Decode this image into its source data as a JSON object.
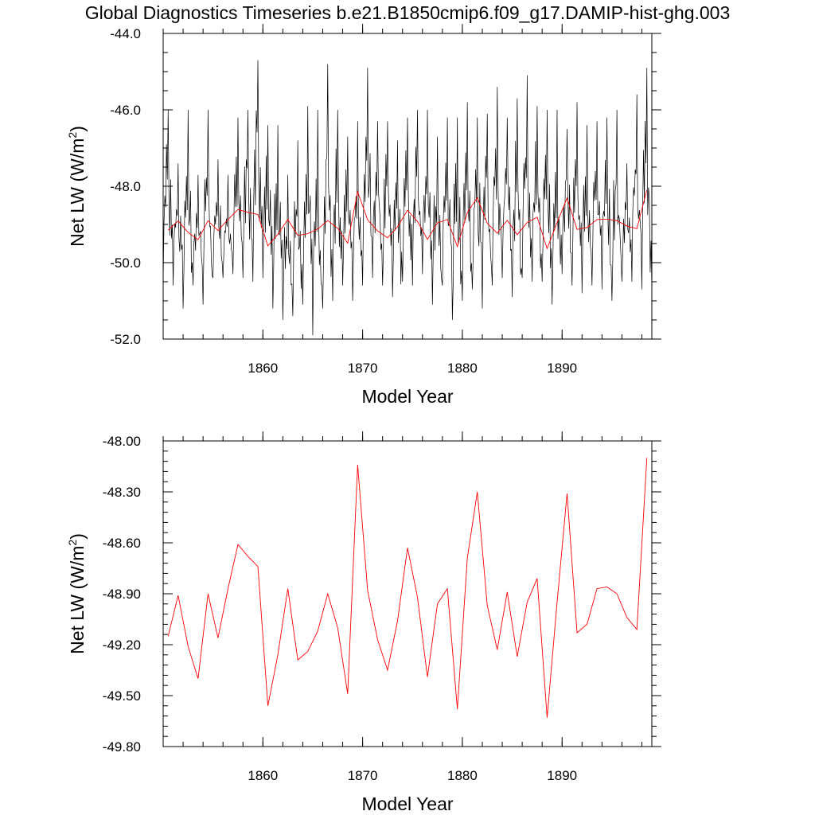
{
  "page_title": "Global Diagnostics Timeseries b.e21.B1850cmip6.f09_g17.DAMIP-hist-ghg.003",
  "chart_data": [
    {
      "type": "line",
      "xlabel": "Model Year",
      "ylabel": "Net LW (W/m",
      "ylabel_sup": "2",
      "ylabel_close": ")",
      "xlim": [
        1850,
        1899
      ],
      "ylim": [
        -52.0,
        -44.0
      ],
      "xticks": [
        1860,
        1870,
        1880,
        1890
      ],
      "xtick_labels": [
        "1860",
        "1870",
        "1880",
        "1890"
      ],
      "yticks": [
        -52.0,
        -50.0,
        -48.0,
        -46.0,
        -44.0
      ],
      "ytick_labels": [
        "-52.0",
        "-50.0",
        "-48.0",
        "-46.0",
        "-44.0"
      ],
      "x_minor_step": 2,
      "y_minor_step": 0.5,
      "grid": false,
      "monthly_peaks": [
        -46.0,
        -47.4,
        -46.0,
        -47.7,
        -46.0,
        -47.3,
        -47.7,
        -46.2,
        -46.0,
        -44.7,
        -46.4,
        -46.4,
        -47.7,
        -46.8,
        -45.9,
        -46.0,
        -44.8,
        -46.0,
        -46.7,
        -46.3,
        -44.9,
        -46.3,
        -46.3,
        -46.8,
        -46.2,
        -46.0,
        -46.0,
        -46.7,
        -46.2,
        -46.2,
        -45.8,
        -46.2,
        -46.1,
        -45.4,
        -46.2,
        -45.7,
        -45.1,
        -45.9,
        -46.0,
        -46.0,
        -46.5,
        -45.8,
        -46.4,
        -46.3,
        -46.2,
        -46.0,
        -47.4,
        -45.6,
        -44.9,
        -45.7
      ],
      "monthly_troughs": [
        -50.5,
        -50.6,
        -51.2,
        -50.6,
        -51.1,
        -50.4,
        -50.4,
        -50.3,
        -50.4,
        -50.5,
        -50.4,
        -51.2,
        -51.5,
        -51.4,
        -51.1,
        -51.9,
        -51.2,
        -51.0,
        -50.6,
        -51.0,
        -50.6,
        -50.4,
        -50.6,
        -50.9,
        -50.5,
        -50.6,
        -50.3,
        -51.1,
        -50.6,
        -51.5,
        -51.0,
        -50.7,
        -51.2,
        -50.6,
        -50.4,
        -50.9,
        -50.4,
        -50.5,
        -50.5,
        -51.1,
        -50.3,
        -50.6,
        -50.8,
        -50.6,
        -50.7,
        -51.0,
        -50.5,
        -50.5,
        -50.7,
        -50.7
      ],
      "series": [
        {
          "color": "#000000",
          "kind": "monthly"
        },
        {
          "color": "#ff0000",
          "kind": "annual",
          "x": [
            1850.5,
            1851.5,
            1852.5,
            1853.5,
            1854.5,
            1855.5,
            1856.5,
            1857.5,
            1858.5,
            1859.5,
            1860.5,
            1861.5,
            1862.5,
            1863.5,
            1864.5,
            1865.5,
            1866.5,
            1867.5,
            1868.5,
            1869.5,
            1870.5,
            1871.5,
            1872.5,
            1873.5,
            1874.5,
            1875.5,
            1876.5,
            1877.5,
            1878.5,
            1879.5,
            1880.5,
            1881.5,
            1882.5,
            1883.5,
            1884.5,
            1885.5,
            1886.5,
            1887.5,
            1888.5,
            1889.5,
            1890.5,
            1891.5,
            1892.5,
            1893.5,
            1894.5,
            1895.5,
            1896.5,
            1897.5,
            1898.5
          ],
          "values": [
            -49.15,
            -48.91,
            -49.21,
            -49.4,
            -48.9,
            -49.16,
            -48.87,
            -48.61,
            -48.68,
            -48.74,
            -49.56,
            -49.26,
            -48.87,
            -49.29,
            -49.24,
            -49.12,
            -48.9,
            -49.1,
            -49.49,
            -48.14,
            -48.88,
            -49.17,
            -49.35,
            -49.06,
            -48.63,
            -48.92,
            -49.39,
            -48.96,
            -48.87,
            -49.58,
            -48.69,
            -48.3,
            -48.97,
            -49.23,
            -48.89,
            -49.27,
            -48.95,
            -48.81,
            -49.63,
            -48.95,
            -48.31,
            -49.13,
            -49.08,
            -48.87,
            -48.86,
            -48.9,
            -49.04,
            -49.11,
            -48.1
          ]
        }
      ]
    },
    {
      "type": "line",
      "xlabel": "Model Year",
      "ylabel": "Net LW (W/m",
      "ylabel_sup": "2",
      "ylabel_close": ")",
      "xlim": [
        1850,
        1899
      ],
      "ylim": [
        -49.8,
        -48.0
      ],
      "xticks": [
        1860,
        1870,
        1880,
        1890
      ],
      "xtick_labels": [
        "1860",
        "1870",
        "1880",
        "1890"
      ],
      "yticks": [
        -49.8,
        -49.5,
        -49.2,
        -48.9,
        -48.6,
        -48.3,
        -48.0
      ],
      "ytick_labels": [
        "-49.80",
        "-49.50",
        "-49.20",
        "-48.90",
        "-48.60",
        "-48.30",
        "-48.00"
      ],
      "x_minor_step": 2,
      "y_minor_step": 0.06,
      "grid": false,
      "series": [
        {
          "color": "#ff0000",
          "kind": "annual",
          "x": [
            1850.5,
            1851.5,
            1852.5,
            1853.5,
            1854.5,
            1855.5,
            1856.5,
            1857.5,
            1858.5,
            1859.5,
            1860.5,
            1861.5,
            1862.5,
            1863.5,
            1864.5,
            1865.5,
            1866.5,
            1867.5,
            1868.5,
            1869.5,
            1870.5,
            1871.5,
            1872.5,
            1873.5,
            1874.5,
            1875.5,
            1876.5,
            1877.5,
            1878.5,
            1879.5,
            1880.5,
            1881.5,
            1882.5,
            1883.5,
            1884.5,
            1885.5,
            1886.5,
            1887.5,
            1888.5,
            1889.5,
            1890.5,
            1891.5,
            1892.5,
            1893.5,
            1894.5,
            1895.5,
            1896.5,
            1897.5,
            1898.5
          ],
          "values": [
            -49.15,
            -48.91,
            -49.21,
            -49.4,
            -48.9,
            -49.16,
            -48.87,
            -48.61,
            -48.68,
            -48.74,
            -49.56,
            -49.26,
            -48.87,
            -49.29,
            -49.24,
            -49.12,
            -48.9,
            -49.1,
            -49.49,
            -48.14,
            -48.88,
            -49.17,
            -49.35,
            -49.06,
            -48.63,
            -48.92,
            -49.39,
            -48.96,
            -48.87,
            -49.58,
            -48.69,
            -48.3,
            -48.97,
            -49.23,
            -48.89,
            -49.27,
            -48.95,
            -48.81,
            -49.63,
            -48.95,
            -48.31,
            -49.13,
            -49.08,
            -48.87,
            -48.86,
            -48.9,
            -49.04,
            -49.11,
            -48.1
          ]
        }
      ]
    }
  ]
}
